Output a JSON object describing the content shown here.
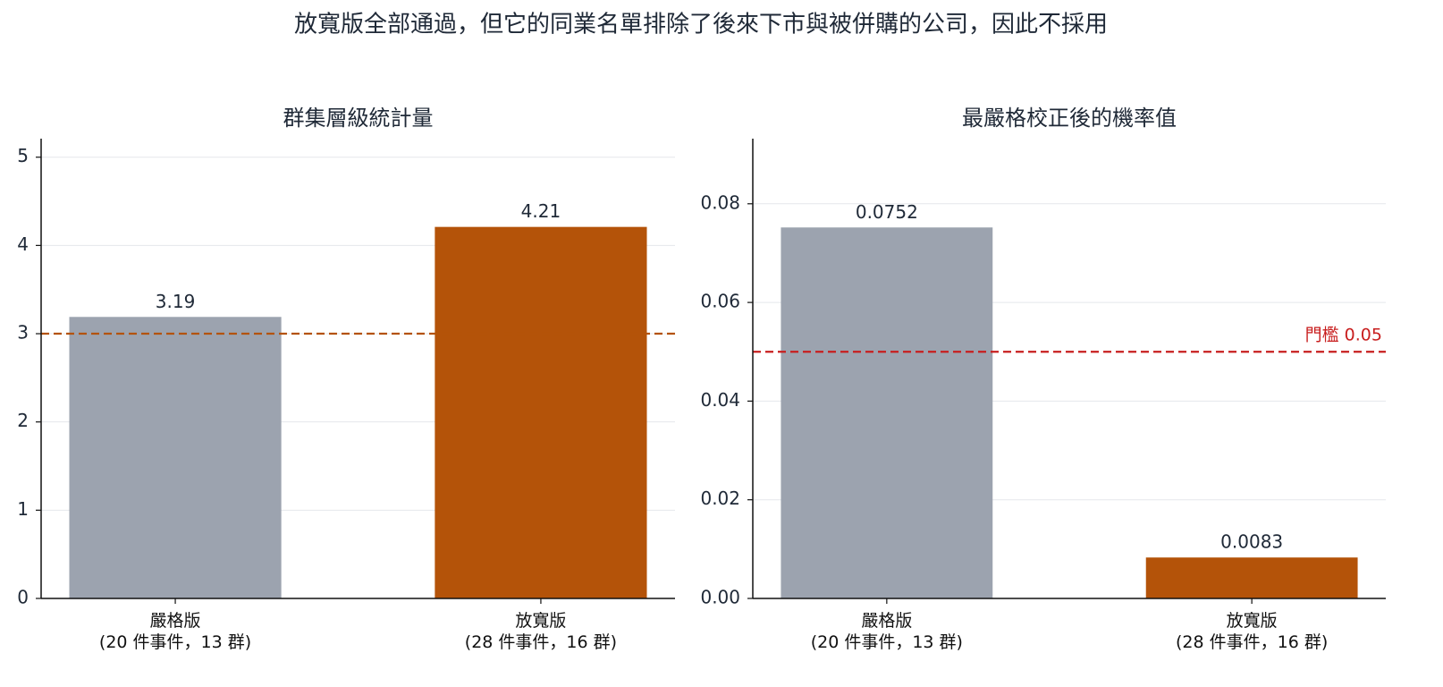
{
  "title": "放寬版全部通過，但它的同業名單排除了後來下市與被併購的公司，因此不採用",
  "chart_data": [
    {
      "type": "bar",
      "title": "群集層級統計量",
      "categories": [
        "嚴格版\n(20 件事件，13 群)",
        "放寬版\n(28 件事件，16 群)"
      ],
      "values": [
        3.19,
        4.21
      ],
      "colors": [
        "#9ca3af",
        "#b45309"
      ],
      "ylim": [
        0,
        5.21
      ],
      "yticks": [
        0,
        1,
        2,
        3,
        4,
        5
      ],
      "grid": true,
      "reference_line": {
        "value": 3,
        "color": "#b45309"
      }
    },
    {
      "type": "bar",
      "title": "最嚴格校正後的機率值",
      "categories": [
        "嚴格版\n(20 件事件，13 群)",
        "放寬版\n(28 件事件，16 群)"
      ],
      "values": [
        0.0752,
        0.0083
      ],
      "colors": [
        "#9ca3af",
        "#b45309"
      ],
      "ylim": [
        0,
        0.0932
      ],
      "yticks": [
        {
          "value": 0,
          "label": "0.00"
        },
        {
          "value": 0.02,
          "label": "0.02"
        },
        {
          "value": 0.04,
          "label": "0.04"
        },
        {
          "value": 0.06,
          "label": "0.06"
        },
        {
          "value": 0.08,
          "label": "0.08"
        }
      ],
      "grid": true,
      "reference_line": {
        "value": 0.05,
        "label": "門檻 0.05",
        "color": "#c81e1e"
      }
    }
  ]
}
